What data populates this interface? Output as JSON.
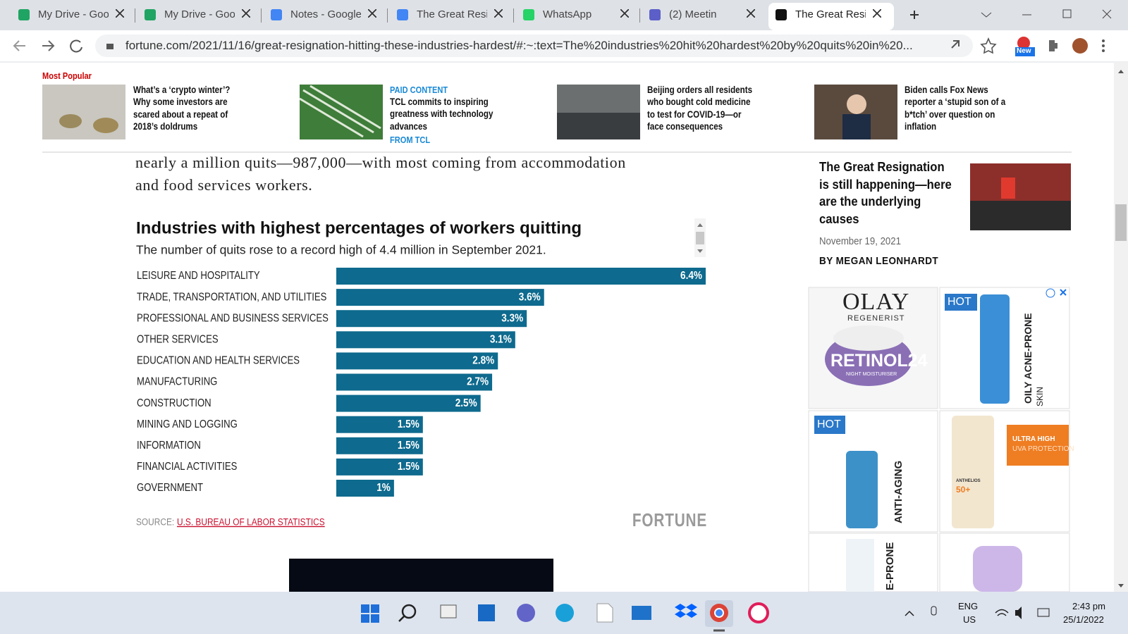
{
  "browser": {
    "tabs": [
      "My Drive - Goo",
      "My Drive - Goo",
      "Notes - Google",
      "The Great Resi",
      "WhatsApp",
      "(2) Meetin",
      "The Great Resi"
    ],
    "url": "fortune.com/2021/11/16/great-resignation-hitting-these-industries-hardest/#:~:text=The%20industries%20hit%20hardest%20by%20quits%20in%20...",
    "badge": "New"
  },
  "most_popular": {
    "title": "Most Popular",
    "items": [
      {
        "lines": [
          "What’s a ‘crypto winter’?",
          "Why some investors are",
          "scared about a repeat of",
          "2018’s doldrums"
        ]
      },
      {
        "tag": "PAID CONTENT",
        "lines": [
          "TCL commits to inspiring",
          "greatness with technology",
          "advances"
        ],
        "sponsor": "FROM TCL"
      },
      {
        "lines": [
          "Beijing orders all residents",
          "who bought cold medicine",
          "to test for COVID-19—or",
          "face consequences"
        ]
      },
      {
        "lines": [
          "Biden calls Fox News",
          "reporter a ‘stupid son of a",
          "b*tch’ over question on",
          "inflation"
        ]
      }
    ]
  },
  "article": {
    "lines": [
      "nearly a million quits—987,000—with most coming from accommodation",
      "and food services workers."
    ]
  },
  "chart_data": {
    "type": "bar",
    "orientation": "horizontal",
    "title": "Industries with highest percentages of workers quitting",
    "subtitle": "The number of quits rose to a record high of 4.4 million in September 2021.",
    "categories": [
      "LEISURE AND HOSPITALITY",
      "TRADE, TRANSPORTATION, AND UTILITIES",
      "PROFESSIONAL AND BUSINESS SERVICES",
      "OTHER SERVICES",
      "EDUCATION AND HEALTH SERVICES",
      "MANUFACTURING",
      "CONSTRUCTION",
      "MINING AND LOGGING",
      "INFORMATION",
      "FINANCIAL ACTIVITIES",
      "GOVERNMENT"
    ],
    "values": [
      6.4,
      3.6,
      3.3,
      3.1,
      2.8,
      2.7,
      2.5,
      1.5,
      1.5,
      1.5,
      1
    ],
    "value_labels": [
      "6.4%",
      "3.6%",
      "3.3%",
      "3.1%",
      "2.8%",
      "2.7%",
      "2.5%",
      "1.5%",
      "1.5%",
      "1.5%",
      "1%"
    ],
    "color": "#0e6a8e",
    "source_label": "SOURCE:",
    "source": "U.S. BUREAU OF LABOR STATISTICS",
    "brand": "FORTUNE"
  },
  "sidebar": {
    "title_lines": [
      "The Great Resignation",
      "is still happening—here",
      "are the underlying",
      "causes"
    ],
    "date": "November 19, 2021",
    "byline": "BY MEGAN LEONHARDT"
  },
  "ads": {
    "olay": [
      "OLAY",
      "REGENERIST",
      "RETINOL24",
      "NIGHT MOISTURISER"
    ],
    "acne": [
      "HOT",
      "OILY ACNE-PRONE",
      "SKIN"
    ],
    "serum": [
      "HOT",
      "ANTI-AGING"
    ],
    "sunscreen": [
      "ULTRA HIGH",
      "UVA PROTECTION",
      "ANTHELIOS",
      "50+"
    ],
    "tube": [
      "E-PRONE"
    ]
  },
  "taskbar": {
    "language": "ENG",
    "region": "US",
    "time": "2:43 pm",
    "date": "25/1/2022"
  }
}
